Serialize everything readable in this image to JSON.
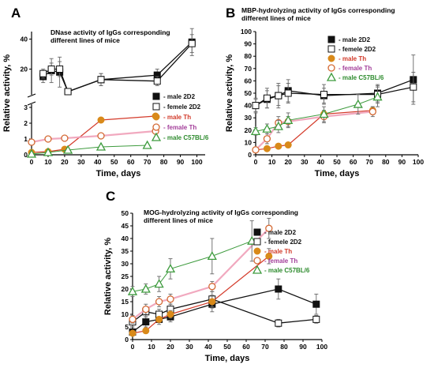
{
  "colors": {
    "male_2D2": "#111111",
    "female_2D2": "#111111",
    "male_Th": "#d98a1a",
    "female_Th": "#d46a35",
    "male_C57": "#3e9b3e",
    "error_bar": "#666666",
    "text_purple": "#a33f9a",
    "text_red": "#d23a2a",
    "text_green": "#2e8b2e",
    "connector_red": "#d43b2b",
    "connector_pink": "#f0a0b8"
  },
  "chart_data": [
    {
      "panel": "A",
      "type": "line",
      "title": "DNase  activity of IgGs corresponding\ndifferent lines of mice",
      "xlabel": "Time, days",
      "ylabel": "Relative activity, %",
      "xlim": [
        0,
        105
      ],
      "x_ticks": [
        0,
        10,
        20,
        30,
        40,
        50,
        60,
        70,
        80,
        90,
        100
      ],
      "y_scale": "broken",
      "y_lower_range": [
        0,
        3
      ],
      "y_upper_range": [
        5,
        45
      ],
      "y_ticks_lower": [
        0,
        1,
        2,
        3
      ],
      "y_ticks_upper": [
        20,
        40
      ],
      "grid": false,
      "legend_position": "middle-right",
      "series": [
        {
          "name": "- male 2D2",
          "marker": "square-filled",
          "color_key": "male_2D2",
          "points": [
            [
              7,
              15,
              4
            ],
            [
              12,
              19,
              8
            ],
            [
              17,
              18,
              10
            ],
            [
              22,
              5,
              1
            ],
            [
              42,
              13,
              4
            ],
            [
              76,
              16,
              4
            ],
            [
              97,
              38,
              9
            ]
          ]
        },
        {
          "name": "- femele 2D2",
          "marker": "square-open",
          "color_key": "female_2D2",
          "points": [
            [
              7,
              17,
              3
            ],
            [
              12,
              20,
              4
            ],
            [
              17,
              20,
              5
            ],
            [
              22,
              5,
              1
            ],
            [
              42,
              13,
              4
            ],
            [
              76,
              12,
              3
            ],
            [
              97,
              37,
              6
            ]
          ]
        },
        {
          "name": "- male Th",
          "marker": "circle-filled",
          "color_key": "male_Th",
          "points": [
            [
              0,
              0.15,
              0.05
            ],
            [
              10,
              0.2,
              0.05
            ],
            [
              20,
              0.35,
              0.05
            ],
            [
              42,
              2.2,
              0.1
            ],
            [
              75,
              2.45,
              0.1
            ]
          ]
        },
        {
          "name": "- female Th",
          "marker": "circle-open",
          "color_key": "female_Th",
          "points": [
            [
              0,
              0.8,
              0.1
            ],
            [
              10,
              1.0,
              0.1
            ],
            [
              20,
              1.05,
              0.1
            ],
            [
              42,
              1.2,
              0.1
            ],
            [
              75,
              1.5,
              0.1
            ]
          ]
        },
        {
          "name": "- male C57BL/6",
          "marker": "triangle-open",
          "color_key": "male_C57",
          "points": [
            [
              0,
              0.05,
              0
            ],
            [
              10,
              0.15,
              0
            ],
            [
              22,
              0.3,
              0
            ],
            [
              42,
              0.5,
              0
            ],
            [
              70,
              0.6,
              0
            ]
          ]
        }
      ]
    },
    {
      "panel": "B",
      "type": "line",
      "title": "MBP-hydrolyzing activity of IgGs corresponding\ndifferent lines of mice",
      "xlabel": "Time, days",
      "ylabel": "Relative activity, %",
      "xlim": [
        0,
        100
      ],
      "ylim": [
        0,
        100
      ],
      "x_ticks": [
        0,
        10,
        20,
        30,
        40,
        50,
        60,
        70,
        80,
        90,
        100
      ],
      "y_ticks": [
        0,
        10,
        20,
        30,
        40,
        50,
        60,
        70,
        80,
        90,
        100
      ],
      "grid": false,
      "legend_position": "top-right",
      "series": [
        {
          "name": "- male 2D2",
          "marker": "square-filled",
          "color_key": "male_2D2",
          "points": [
            [
              0,
              40,
              6
            ],
            [
              7,
              45,
              7
            ],
            [
              14,
              48,
              8
            ],
            [
              20,
              52,
              9
            ],
            [
              42,
              48,
              6
            ],
            [
              75,
              50,
              7
            ],
            [
              97,
              61,
              20
            ]
          ]
        },
        {
          "name": "- femele 2D2",
          "marker": "square-open",
          "color_key": "female_2D2",
          "points": [
            [
              0,
              40,
              5
            ],
            [
              7,
              46,
              8
            ],
            [
              14,
              48,
              10
            ],
            [
              20,
              50,
              8
            ],
            [
              42,
              49,
              8
            ],
            [
              75,
              49,
              7
            ],
            [
              97,
              55,
              12
            ]
          ]
        },
        {
          "name": "- male Th",
          "marker": "circle-filled",
          "color_key": "male_Th",
          "points": [
            [
              0,
              4,
              1
            ],
            [
              7,
              5,
              1
            ],
            [
              14,
              7,
              1
            ],
            [
              20,
              8,
              1
            ],
            [
              42,
              33,
              3
            ],
            [
              72,
              36,
              3
            ]
          ]
        },
        {
          "name": "- female Th",
          "marker": "circle-open",
          "color_key": "female_Th",
          "points": [
            [
              0,
              4,
              2
            ],
            [
              7,
              13,
              4
            ],
            [
              14,
              26,
              5
            ],
            [
              20,
              27,
              4
            ],
            [
              42,
              31,
              5
            ],
            [
              72,
              35,
              4
            ]
          ]
        },
        {
          "name": "- male C57BL/6",
          "marker": "triangle-open",
          "color_key": "male_C57",
          "points": [
            [
              0,
              19,
              3
            ],
            [
              7,
              21,
              4
            ],
            [
              14,
              23,
              5
            ],
            [
              20,
              28,
              6
            ],
            [
              42,
              33,
              6
            ],
            [
              63,
              41,
              8
            ],
            [
              75,
              47,
              8
            ]
          ]
        }
      ]
    },
    {
      "panel": "C",
      "type": "line",
      "title": "MOG-hydrolyzing activity of IgGs corresponding\ndifferent lines of mice",
      "xlabel": "Time, days",
      "ylabel": "Relative activity, %",
      "xlim": [
        0,
        100
      ],
      "ylim": [
        0,
        50
      ],
      "x_ticks": [
        0,
        10,
        20,
        30,
        40,
        50,
        60,
        70,
        80,
        90,
        100
      ],
      "y_ticks": [
        0,
        5,
        10,
        15,
        20,
        25,
        30,
        35,
        40,
        45,
        50
      ],
      "grid": false,
      "legend_position": "middle-right",
      "series": [
        {
          "name": "- male 2D2",
          "marker": "square-filled",
          "color_key": "male_2D2",
          "points": [
            [
              0,
              3,
              1
            ],
            [
              7,
              7,
              2
            ],
            [
              14,
              8,
              2
            ],
            [
              20,
              9,
              2
            ],
            [
              42,
              14,
              3
            ],
            [
              77,
              20,
              4
            ],
            [
              97,
              14,
              4
            ]
          ]
        },
        {
          "name": "- femele 2D2",
          "marker": "square-open",
          "color_key": "female_2D2",
          "points": [
            [
              0,
              7,
              2
            ],
            [
              7,
              11,
              2
            ],
            [
              14,
              10,
              2
            ],
            [
              20,
              12,
              2
            ],
            [
              42,
              16,
              3
            ],
            [
              77,
              6.5,
              1.5
            ],
            [
              97,
              8,
              1.5
            ]
          ]
        },
        {
          "name": "- male Th",
          "marker": "circle-filled",
          "color_key": "male_Th",
          "points": [
            [
              0,
              2.5,
              0.5
            ],
            [
              7,
              3.5,
              0.5
            ],
            [
              14,
              8,
              1
            ],
            [
              20,
              10,
              1.5
            ],
            [
              42,
              15,
              2.5
            ],
            [
              72,
              33,
              3
            ]
          ]
        },
        {
          "name": "- female Th",
          "marker": "circle-open",
          "color_key": "female_Th",
          "points": [
            [
              0,
              8,
              1.5
            ],
            [
              7,
              12,
              2
            ],
            [
              14,
              15,
              2
            ],
            [
              20,
              16,
              2
            ],
            [
              42,
              21,
              2
            ],
            [
              72,
              44,
              4
            ]
          ]
        },
        {
          "name": "- male C57BL/6",
          "marker": "triangle-open",
          "color_key": "male_C57",
          "points": [
            [
              0,
              19,
              2
            ],
            [
              7,
              20,
              2
            ],
            [
              14,
              22,
              3
            ],
            [
              20,
              28,
              4
            ],
            [
              42,
              33,
              7
            ],
            [
              63,
              39,
              8
            ]
          ]
        }
      ]
    }
  ]
}
